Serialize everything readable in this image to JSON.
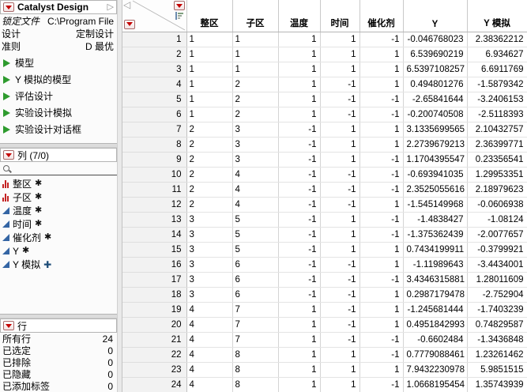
{
  "glyphs": {
    "asterisk": "✱",
    "plus": "✚",
    "collapse_left": "◁",
    "expand_right": "▷"
  },
  "colors": {
    "accent_red": "#c40000",
    "script_green": "#2e9b2e",
    "continuous_blue": "#3465a4",
    "nominal_red": "#c42222",
    "plus_blue": "#1f4e79"
  },
  "sidebar": {
    "table_panel": {
      "title": "Catalyst Design",
      "properties": [
        {
          "label": "锁定文件",
          "value": "C:\\Program File",
          "italic": true
        },
        {
          "label": "设计",
          "value": "定制设计",
          "italic": false
        },
        {
          "label": "准则",
          "value": "D 最优",
          "italic": false
        }
      ],
      "scripts": [
        "模型",
        "Y 模拟的模型",
        "评估设计",
        "实验设计模拟",
        "实验设计对话框"
      ]
    },
    "columns_panel": {
      "title": "列 (7/0)",
      "search_value": "",
      "items": [
        {
          "name": "整区",
          "type": "nominal",
          "marker": "asterisk"
        },
        {
          "name": "子区",
          "type": "nominal",
          "marker": "asterisk"
        },
        {
          "name": "温度",
          "type": "continuous",
          "marker": "asterisk"
        },
        {
          "name": "时间",
          "type": "continuous",
          "marker": "asterisk"
        },
        {
          "name": "催化剂",
          "type": "continuous",
          "marker": "asterisk"
        },
        {
          "name": "Y",
          "type": "continuous",
          "marker": "asterisk"
        },
        {
          "name": "Y 模拟",
          "type": "continuous",
          "marker": "plus"
        }
      ]
    },
    "rows_panel": {
      "title": "行",
      "stats": [
        {
          "label": "所有行",
          "value": "24"
        },
        {
          "label": "已选定",
          "value": "0"
        },
        {
          "label": "已排除",
          "value": "0"
        },
        {
          "label": "已隐藏",
          "value": "0"
        },
        {
          "label": "已添加标签",
          "value": "0"
        }
      ]
    }
  },
  "table": {
    "columns": [
      {
        "label": "整区",
        "align": "left"
      },
      {
        "label": "子区",
        "align": "left"
      },
      {
        "label": "温度",
        "align": "right"
      },
      {
        "label": "时间",
        "align": "right"
      },
      {
        "label": "催化剂",
        "align": "right"
      },
      {
        "label": "Y",
        "align": "right"
      },
      {
        "label": "Y 模拟",
        "align": "right"
      }
    ],
    "rows": [
      {
        "n": "1",
        "values": [
          "1",
          "1",
          "1",
          "1",
          "-1",
          "-0.046768023",
          "2.38362212"
        ]
      },
      {
        "n": "2",
        "values": [
          "1",
          "1",
          "1",
          "1",
          "1",
          "6.539690219",
          "6.934627"
        ]
      },
      {
        "n": "3",
        "values": [
          "1",
          "1",
          "1",
          "1",
          "1",
          "6.5397108257",
          "6.6911769"
        ]
      },
      {
        "n": "4",
        "values": [
          "1",
          "2",
          "1",
          "-1",
          "1",
          "0.494801276",
          "-1.5879342"
        ]
      },
      {
        "n": "5",
        "values": [
          "1",
          "2",
          "1",
          "-1",
          "-1",
          "-2.65841644",
          "-3.2406153"
        ]
      },
      {
        "n": "6",
        "values": [
          "1",
          "2",
          "1",
          "-1",
          "-1",
          "-0.200740508",
          "-2.5118393"
        ]
      },
      {
        "n": "7",
        "values": [
          "2",
          "3",
          "-1",
          "1",
          "1",
          "3.1335699565",
          "2.10432757"
        ]
      },
      {
        "n": "8",
        "values": [
          "2",
          "3",
          "-1",
          "1",
          "1",
          "2.2739679213",
          "2.36399771"
        ]
      },
      {
        "n": "9",
        "values": [
          "2",
          "3",
          "-1",
          "1",
          "-1",
          "1.1704395547",
          "0.23356541"
        ]
      },
      {
        "n": "10",
        "values": [
          "2",
          "4",
          "-1",
          "-1",
          "-1",
          "-0.693941035",
          "1.29953351"
        ]
      },
      {
        "n": "11",
        "values": [
          "2",
          "4",
          "-1",
          "-1",
          "-1",
          "2.3525055616",
          "2.18979623"
        ]
      },
      {
        "n": "12",
        "values": [
          "2",
          "4",
          "-1",
          "-1",
          "1",
          "-1.545149968",
          "-0.0606938"
        ]
      },
      {
        "n": "13",
        "values": [
          "3",
          "5",
          "-1",
          "1",
          "-1",
          "-1.4838427",
          "-1.08124"
        ]
      },
      {
        "n": "14",
        "values": [
          "3",
          "5",
          "-1",
          "1",
          "-1",
          "-1.375362439",
          "-2.0077657"
        ]
      },
      {
        "n": "15",
        "values": [
          "3",
          "5",
          "-1",
          "1",
          "1",
          "0.7434199911",
          "-0.3799921"
        ]
      },
      {
        "n": "16",
        "values": [
          "3",
          "6",
          "-1",
          "-1",
          "1",
          "-1.11989643",
          "-3.4434001"
        ]
      },
      {
        "n": "17",
        "values": [
          "3",
          "6",
          "-1",
          "-1",
          "-1",
          "3.4346315881",
          "1.28011609"
        ]
      },
      {
        "n": "18",
        "values": [
          "3",
          "6",
          "-1",
          "-1",
          "1",
          "0.2987179478",
          "-2.752904"
        ]
      },
      {
        "n": "19",
        "values": [
          "4",
          "7",
          "1",
          "-1",
          "1",
          "-1.245681444",
          "-1.7403239"
        ]
      },
      {
        "n": "20",
        "values": [
          "4",
          "7",
          "1",
          "-1",
          "1",
          "0.4951842993",
          "0.74829587"
        ]
      },
      {
        "n": "21",
        "values": [
          "4",
          "7",
          "1",
          "-1",
          "-1",
          "-0.6602484",
          "-1.3436848"
        ]
      },
      {
        "n": "22",
        "values": [
          "4",
          "8",
          "1",
          "1",
          "-1",
          "0.7779088461",
          "1.23261462"
        ]
      },
      {
        "n": "23",
        "values": [
          "4",
          "8",
          "1",
          "1",
          "1",
          "7.9432230978",
          "5.9851515"
        ]
      },
      {
        "n": "24",
        "values": [
          "4",
          "8",
          "1",
          "1",
          "-1",
          "1.0668195454",
          "1.35743939"
        ]
      }
    ]
  }
}
